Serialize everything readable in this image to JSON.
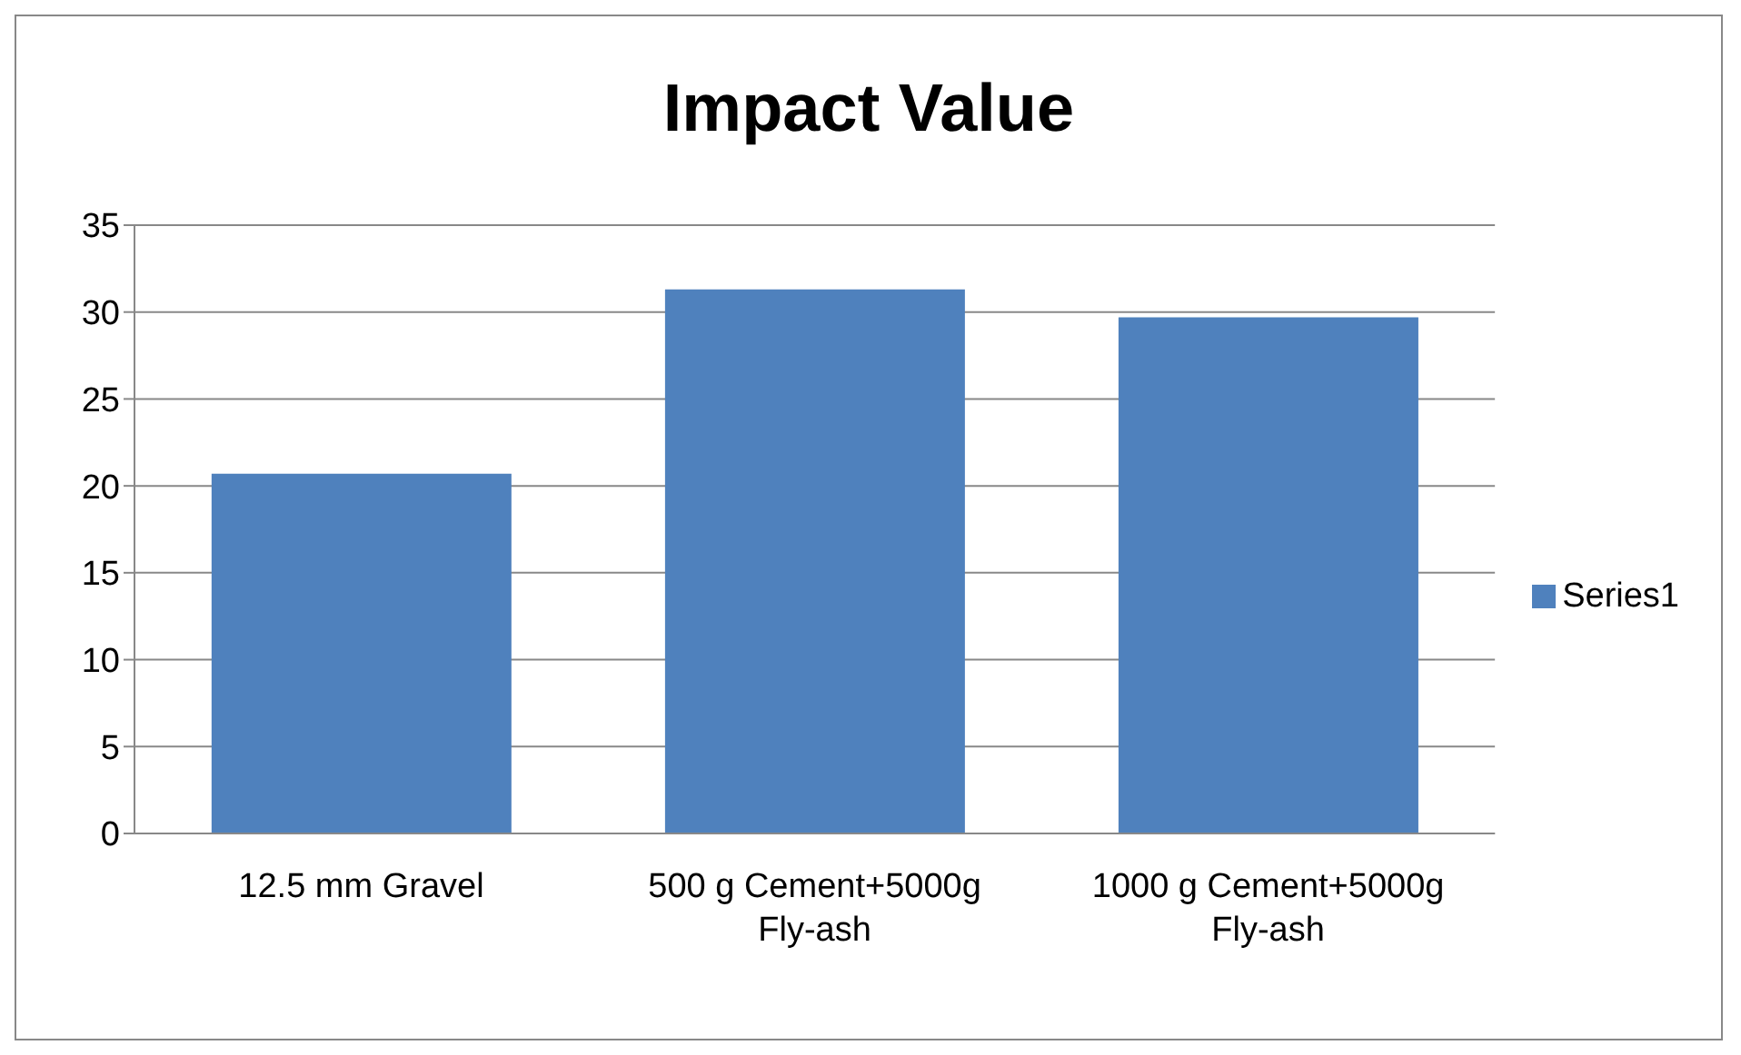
{
  "chart_data": {
    "type": "bar",
    "title": "Impact Value",
    "categories": [
      "12.5 mm Gravel",
      "500 g Cement+5000g Fly-ash",
      "1000 g Cement+5000g Fly-ash"
    ],
    "series": [
      {
        "name": "Series1",
        "color": "#4f81bd",
        "values": [
          20.7,
          31.3,
          29.7
        ]
      }
    ],
    "ylim": [
      0,
      35
    ],
    "yticks": [
      0,
      5,
      10,
      15,
      20,
      25,
      30,
      35
    ],
    "grid": "y",
    "legend": "right"
  }
}
